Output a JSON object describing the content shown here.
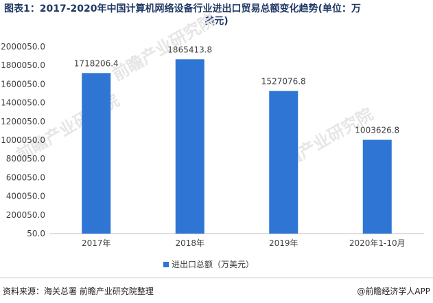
{
  "title_line1": "图表1：2017-2020年中国计算机网络设备行业进出口贸易总额变化趋势(单位：万",
  "title_line2": "美元)",
  "watermark": "前瞻产业研究院",
  "source": "资料来源：海关总署 前瞻产业研究院整理",
  "brand": "@前瞻经济学人APP",
  "colors": {
    "bar": "#2e75d4",
    "title": "#1f3864",
    "grid": "#d9d9d9"
  },
  "chart_data": {
    "type": "bar",
    "categories": [
      "2017年",
      "2018年",
      "2019年",
      "2020年1-10月"
    ],
    "series": [
      {
        "name": "进出口总额（万美元）",
        "values": [
          1718206.4,
          1865413.8,
          1527076.8,
          1003626.8
        ],
        "labels": [
          "1718206.4",
          "1865413.8",
          "1527076.8",
          "1003626.8"
        ]
      }
    ],
    "yticks": [
      "50.0",
      "200050.0",
      "400050.0",
      "600050.0",
      "800050.0",
      "1000050.0",
      "1200050.0",
      "1400050.0",
      "1600050.0",
      "1800050.0",
      "2000050.0"
    ],
    "ylim": [
      50,
      2000050
    ],
    "grid": false,
    "legend": "bottom"
  }
}
